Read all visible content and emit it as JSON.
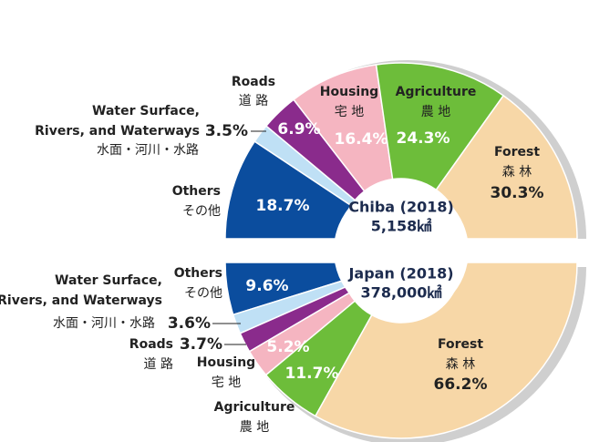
{
  "chart_data": [
    {
      "type": "pie",
      "title": "Chiba (2018)",
      "subtitle": "5,158㎢",
      "categories": [
        "Others",
        "Water Surface,\nRivers, and Waterways",
        "Roads",
        "Housing",
        "Agriculture",
        "Forest"
      ],
      "categories_ja": [
        "その他",
        "水面・河川・水路",
        "道 路",
        "宅 地",
        "農 地",
        "森 林"
      ],
      "values": [
        18.7,
        3.5,
        6.9,
        16.4,
        24.3,
        30.3
      ],
      "value_labels": [
        "18.7%",
        "3.5%",
        "6.9%",
        "16.4%",
        "24.3%",
        "30.3%"
      ],
      "colors": [
        "#0b4d9e",
        "#bfe0f5",
        "#8a2b8c",
        "#f5b5c1",
        "#6dbd3a",
        "#f7d7a7"
      ]
    },
    {
      "type": "pie",
      "title": "Japan (2018)",
      "subtitle": "378,000㎢",
      "categories": [
        "Others",
        "Water Surface,\nRivers, and Waterways",
        "Roads",
        "Housing",
        "Agriculture",
        "Forest"
      ],
      "categories_ja": [
        "その他",
        "水面・河川・水路",
        "道 路",
        "宅 地",
        "農 地",
        "森 林"
      ],
      "values": [
        9.6,
        3.6,
        3.7,
        5.2,
        11.7,
        66.2
      ],
      "value_labels": [
        "9.6%",
        "3.6%",
        "3.7%",
        "5.2%",
        "11.7%",
        "66.2%"
      ],
      "colors": [
        "#0b4d9e",
        "#bfe0f5",
        "#8a2b8c",
        "#f5b5c1",
        "#6dbd3a",
        "#f7d7a7"
      ]
    }
  ]
}
